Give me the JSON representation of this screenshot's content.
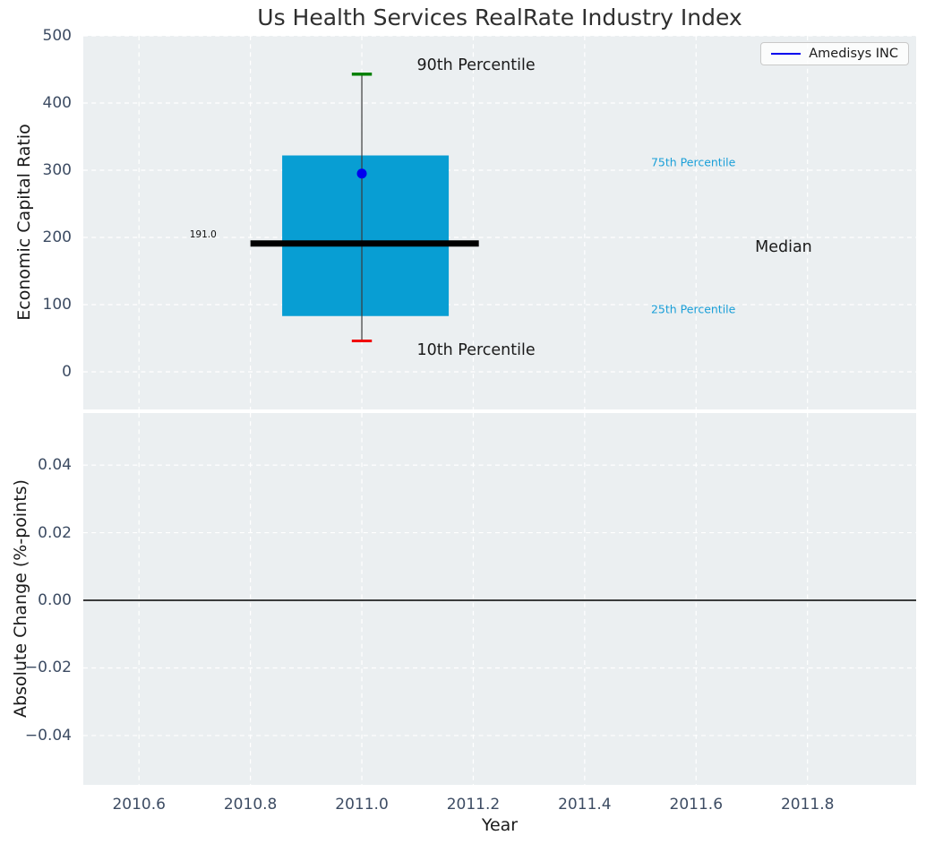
{
  "figure_title": "Us Health Services RealRate Industry Index",
  "colors": {
    "figure_bg": "#ffffff",
    "axes_bg": "#ebeff1",
    "grid": "#ffffff",
    "tick_label": "#3d4c63",
    "title_text": "#2f2f2f",
    "box_fill": "#089ed3",
    "whisker": "#3a3a3a",
    "cap_high": "#008000",
    "cap_low": "#f10000",
    "median_line": "#000000",
    "company_marker": "#0000ee",
    "percentile_label": "#1a9fd8",
    "annotation_text": "#1a1a1a",
    "zero_line": "#000000",
    "legend_border": "#c9c9c9"
  },
  "legend": {
    "label": "Amedisys INC"
  },
  "chart_data": [
    {
      "type": "boxplot",
      "title": "Us Health Services RealRate Industry Index",
      "ylabel": "Economic Capital Ratio",
      "xlabel": "",
      "xlim": [
        2010.5,
        2011.995
      ],
      "ylim": [
        -56,
        500
      ],
      "grid": true,
      "legend": [
        "Amedisys INC"
      ],
      "legend_position": "upper right",
      "yticks": {
        "values": [
          0,
          100,
          200,
          300,
          400,
          500
        ],
        "labels": [
          "0",
          "100",
          "200",
          "300",
          "400",
          "500"
        ]
      },
      "box": {
        "x": 2011.0,
        "box_left": 2010.857,
        "box_right": 2011.156,
        "p10": 46,
        "p25": 83,
        "median": 191.0,
        "p75": 322,
        "p90": 443,
        "median_line_left": 2010.8,
        "median_line_right": 2011.21,
        "cap_half_width": 0.018,
        "median_value_label": "191.0"
      },
      "company_series": {
        "name": "Amedisys INC",
        "x": [
          2011.0
        ],
        "y": [
          295
        ]
      },
      "annotations": [
        {
          "text": "90th Percentile",
          "x": 2011.205,
          "y": 456,
          "style": "dark-large"
        },
        {
          "text": "10th Percentile",
          "x": 2011.205,
          "y": 32,
          "style": "dark-large"
        },
        {
          "text": "75th Percentile",
          "x": 2011.595,
          "y": 312,
          "style": "cyan-small"
        },
        {
          "text": "25th Percentile",
          "x": 2011.595,
          "y": 93,
          "style": "cyan-small"
        },
        {
          "text": "Median",
          "x": 2011.757,
          "y": 185,
          "style": "dark-large"
        },
        {
          "text": "191.0",
          "x": 2010.715,
          "y": 204,
          "style": "tiny"
        }
      ]
    },
    {
      "type": "line",
      "title": "",
      "ylabel": "Absolute Change (%-points)",
      "xlabel": "Year",
      "xlim": [
        2010.5,
        2011.995
      ],
      "ylim": [
        -0.0546,
        0.0554
      ],
      "grid": true,
      "yticks": {
        "values": [
          0.04,
          0.02,
          0.0,
          -0.02,
          -0.04
        ],
        "labels": [
          "0.04",
          "0.02",
          "0.00",
          "−0.02",
          "−0.04"
        ]
      },
      "xticks": {
        "values": [
          2010.6,
          2010.8,
          2011.0,
          2011.2,
          2011.4,
          2011.6,
          2011.8
        ],
        "labels": [
          "2010.6",
          "2010.8",
          "2011.0",
          "2011.2",
          "2011.4",
          "2011.6",
          "2011.8"
        ]
      },
      "zero_line": 0.0,
      "series": []
    }
  ]
}
